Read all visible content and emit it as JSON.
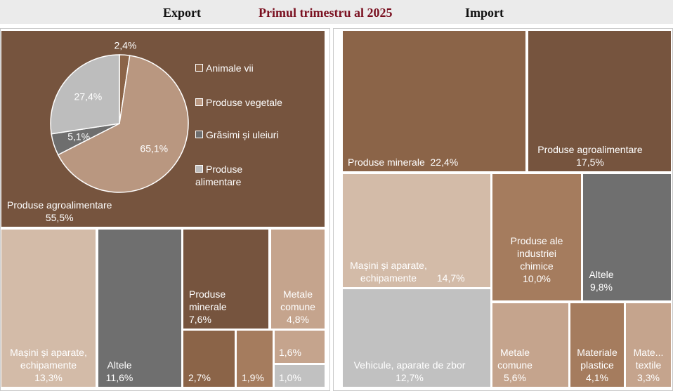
{
  "header": {
    "export_label": "Export",
    "title": "Primul trimestru al 2025",
    "import_label": "Import"
  },
  "colors": {
    "dark_brown": "#76543e",
    "mid_brown": "#8b6448",
    "light_tan": "#d3bba8",
    "tan": "#c5a48d",
    "copper": "#a57c5e",
    "gray": "#6f6f6f",
    "light_gray": "#c1c1c1",
    "pie_light_gray": "#bdbdbd",
    "pie_dark_gray": "#6e6e6e",
    "pie_tan": "#b99780"
  },
  "chart_data": [
    {
      "type": "treemap",
      "title": "Export",
      "items": [
        {
          "label": "Produse agroalimentare",
          "value": 55.5,
          "value_text": "55,5%"
        },
        {
          "label": "Mașini și aparate, echipamente",
          "value": 13.3,
          "value_text": "13,3%"
        },
        {
          "label": "Altele",
          "value": 11.6,
          "value_text": "11,6%"
        },
        {
          "label": "Produse minerale",
          "value": 7.6,
          "value_text": "7,6%"
        },
        {
          "label": "Metale comune",
          "value": 4.8,
          "value_text": "4,8%"
        },
        {
          "label": "",
          "value": 2.7,
          "value_text": "2,7%"
        },
        {
          "label": "",
          "value": 1.9,
          "value_text": "1,9%"
        },
        {
          "label": "",
          "value": 1.6,
          "value_text": "1,6%"
        },
        {
          "label": "",
          "value": 1.0,
          "value_text": "1,0%"
        }
      ]
    },
    {
      "type": "pie",
      "categories": [
        "Animale vii",
        "Produse vegetale",
        "Grăsimi și uleiuri",
        "Produse alimentare"
      ],
      "values": [
        2.4,
        65.1,
        5.1,
        27.4
      ],
      "value_labels": [
        "2,4%",
        "65,1%",
        "5,1%",
        "27,4%"
      ],
      "colors": [
        "#8b6448",
        "#b99780",
        "#6e6e6e",
        "#bdbdbd"
      ],
      "legend": "right"
    },
    {
      "type": "treemap",
      "title": "Import",
      "items": [
        {
          "label": "Produse minerale",
          "value": 22.4,
          "value_text": "22,4%"
        },
        {
          "label": "Produse agroalimentare",
          "value": 17.5,
          "value_text": "17,5%"
        },
        {
          "label": "Mașini și aparate, echipamente",
          "value": 14.7,
          "value_text": "14,7%"
        },
        {
          "label": "Produse ale industriei chimice",
          "value": 10.0,
          "value_text": "10,0%"
        },
        {
          "label": "Altele",
          "value": 9.8,
          "value_text": "9,8%"
        },
        {
          "label": "Vehicule, aparate de zbor",
          "value": 12.7,
          "value_text": "12,7%"
        },
        {
          "label": "Metale comune",
          "value": 5.6,
          "value_text": "5,6%"
        },
        {
          "label": "Materiale plastice",
          "value": 4.1,
          "value_text": "4,1%"
        },
        {
          "label": "Mate... textile",
          "value": 3.3,
          "value_text": "3,3%"
        }
      ]
    }
  ]
}
